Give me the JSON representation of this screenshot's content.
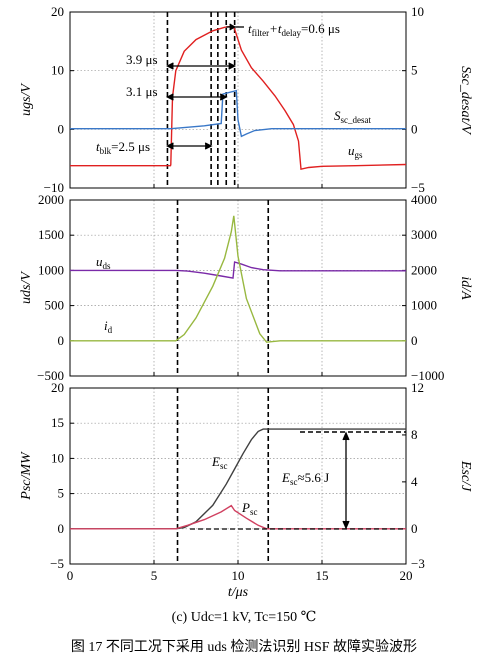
{
  "chart_data": [
    {
      "type": "line",
      "panel": "top",
      "ylabel_left": "ugs/V",
      "ylabel_right": "Ssc_desat/V",
      "xlim": [
        0,
        20
      ],
      "ylim": [
        -10,
        20
      ],
      "ylim_right": [
        -5,
        10
      ],
      "yticks": [
        "20",
        "10",
        "0",
        "−10"
      ],
      "yticks_right": [
        "10",
        "5",
        "0",
        "−5"
      ],
      "grid": true,
      "series": [
        {
          "name": "ugs",
          "color": "#e02020",
          "x": [
            0,
            5.98,
            6.0,
            6.1,
            6.3,
            6.8,
            7.5,
            8.5,
            9.2,
            9.7,
            9.8,
            10.2,
            10.8,
            11.5,
            12.2,
            12.8,
            13.3,
            13.6,
            13.75,
            14.2,
            15,
            17,
            20
          ],
          "y": [
            -6.2,
            -6.2,
            -6.0,
            5.5,
            10.0,
            13.3,
            15.3,
            16.8,
            17.4,
            17.6,
            17.1,
            13.5,
            10.5,
            8.2,
            5.7,
            3.2,
            0.8,
            -2.0,
            -6.8,
            -6.5,
            -6.3,
            -6.2,
            -6.0
          ]
        },
        {
          "name": "Ssc_desat",
          "color": "#3a78c8",
          "x": [
            0,
            6,
            8,
            9.0,
            9.1,
            9.9,
            10.0,
            10.2,
            10.5,
            11,
            12,
            14,
            20
          ],
          "y": [
            0.05,
            0.05,
            0.3,
            0.5,
            3.0,
            3.3,
            0.8,
            -0.6,
            -0.4,
            -0.1,
            0.05,
            0.05,
            0.05
          ]
        }
      ]
    },
    {
      "type": "line",
      "panel": "middle",
      "ylabel_left": "uds/V",
      "ylabel_right": "id/A",
      "xlim": [
        0,
        20
      ],
      "ylim": [
        -500,
        2000
      ],
      "ylim_right": [
        -1000,
        4000
      ],
      "yticks": [
        "2000",
        "1500",
        "1000",
        "500",
        "0",
        "−500"
      ],
      "yticks_right": [
        "4000",
        "3000",
        "2000",
        "1000",
        "0",
        "−1000"
      ],
      "grid": true,
      "series": [
        {
          "name": "uds",
          "color": "#7a2aa8",
          "x": [
            0,
            6.3,
            7.0,
            8.0,
            9.0,
            9.7,
            9.8,
            10.2,
            10.8,
            11.5,
            12.5,
            20
          ],
          "y": [
            1000,
            1000,
            990,
            960,
            920,
            890,
            1120,
            1090,
            1040,
            1010,
            995,
            995
          ]
        },
        {
          "name": "id",
          "color": "#98b840",
          "x": [
            0,
            6.3,
            6.8,
            7.5,
            8.5,
            9.2,
            9.6,
            9.75,
            10.0,
            10.5,
            11.3,
            11.7,
            12.5,
            20
          ],
          "y": [
            0,
            0,
            180,
            650,
            1550,
            2350,
            3100,
            3550,
            2400,
            1200,
            200,
            -40,
            0,
            0
          ]
        }
      ]
    },
    {
      "type": "line",
      "panel": "bottom",
      "ylabel_left": "Psc/MW",
      "ylabel_right": "Esc/J",
      "xlabel": "t/μs",
      "xlim": [
        0,
        20
      ],
      "ylim": [
        -5,
        20
      ],
      "ylim_right": [
        -3,
        12
      ],
      "xticks": [
        "0",
        "5",
        "10",
        "15",
        "20"
      ],
      "yticks": [
        "20",
        "15",
        "10",
        "5",
        "0",
        "−5"
      ],
      "yticks_right": [
        "12",
        "8",
        "4",
        "0",
        "−3"
      ],
      "grid": true,
      "series": [
        {
          "name": "Esc",
          "color": "#404040",
          "x": [
            0,
            6.3,
            6.8,
            7.5,
            8.5,
            9.3,
            9.8,
            10.3,
            10.8,
            11.2,
            11.5,
            12,
            20
          ],
          "y": [
            0,
            0,
            0.1,
            0.6,
            2.0,
            3.8,
            5.1,
            6.4,
            7.6,
            8.3,
            8.5,
            8.5,
            8.5
          ]
        },
        {
          "name": "Psc",
          "color": "#d04060",
          "x": [
            0,
            6.3,
            7.0,
            8.0,
            9.0,
            9.6,
            9.8,
            10.5,
            11.2,
            11.7,
            12,
            20
          ],
          "y": [
            0,
            0,
            0.5,
            1.3,
            2.4,
            3.3,
            2.6,
            1.5,
            0.5,
            0,
            0,
            0
          ]
        }
      ]
    }
  ],
  "annotations": {
    "filter": "t",
    "filter_sub": "filter",
    "delay_plus": "+t",
    "delay_sub": "delay",
    "delay_val": "=0.6 μs",
    "t39": "3.9 μs",
    "t31": "3.1 μs",
    "blk_t": "t",
    "blk_sub": "blk",
    "blk_val": "=2.5 μs",
    "ssc_label": "S",
    "ssc_sub": "sc_desat",
    "ugs_label": "u",
    "ugs_sub": "gs",
    "uds_label": "u",
    "uds_sub": "ds",
    "id_label": "i",
    "id_sub": "d",
    "esc_label": "E",
    "esc_sub": "sc",
    "psc_label": "P",
    "psc_sub": "sc",
    "esc_val_label": "E",
    "esc_val_sub": "sc",
    "esc_val": "≈5.6 J"
  },
  "subcaption": "(c) Udc=1 kV, Tc=150 ℃",
  "caption": "图 17    不同工况下采用 uds 检测法识别 HSF 故障实验波形"
}
